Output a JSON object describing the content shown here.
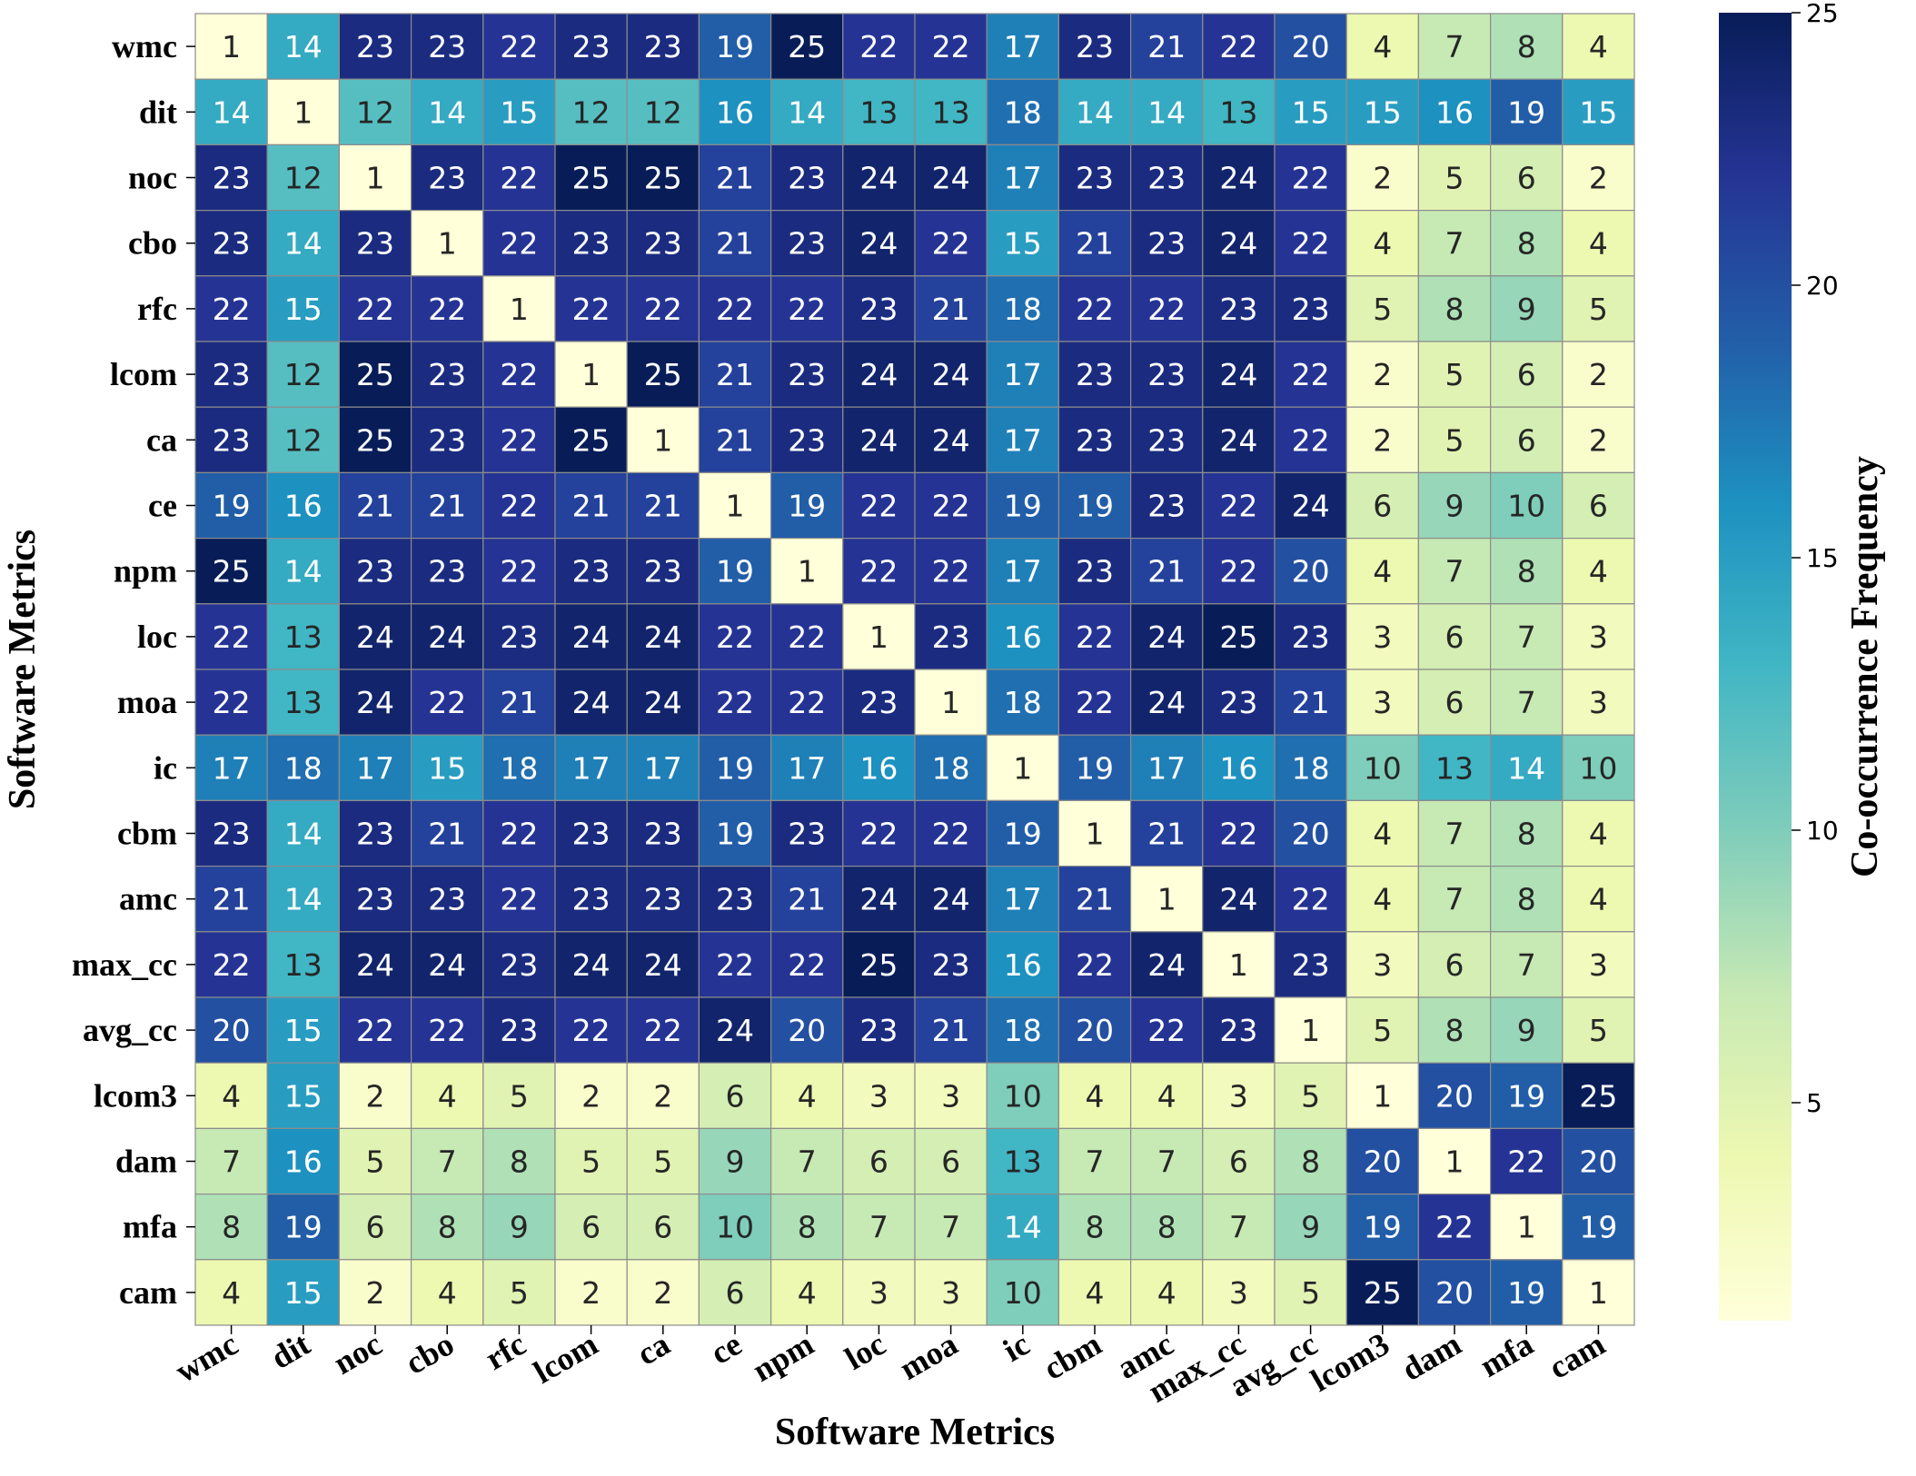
{
  "chart_data": {
    "type": "heatmap",
    "title": "",
    "xlabel": "Software Metrics",
    "ylabel": "Software Metrics",
    "colorbar_label": "Co-occurrence Frequency",
    "colormap": "YlGnBu",
    "vmin": 1,
    "vmax": 25,
    "colorbar_ticks": [
      5,
      10,
      15,
      20,
      25
    ],
    "categories": [
      "wmc",
      "dit",
      "noc",
      "cbo",
      "rfc",
      "lcom",
      "ca",
      "ce",
      "npm",
      "loc",
      "moa",
      "ic",
      "cbm",
      "amc",
      "max_cc",
      "avg_cc",
      "lcom3",
      "dam",
      "mfa",
      "cam"
    ],
    "values": [
      [
        1,
        14,
        23,
        23,
        22,
        23,
        23,
        19,
        25,
        22,
        22,
        17,
        23,
        21,
        22,
        20,
        4,
        7,
        8,
        4
      ],
      [
        14,
        1,
        12,
        14,
        15,
        12,
        12,
        16,
        14,
        13,
        13,
        18,
        14,
        14,
        13,
        15,
        15,
        16,
        19,
        15
      ],
      [
        23,
        12,
        1,
        23,
        22,
        25,
        25,
        21,
        23,
        24,
        24,
        17,
        23,
        23,
        24,
        22,
        2,
        5,
        6,
        2
      ],
      [
        23,
        14,
        23,
        1,
        22,
        23,
        23,
        21,
        23,
        24,
        22,
        15,
        21,
        23,
        24,
        22,
        4,
        7,
        8,
        4
      ],
      [
        22,
        15,
        22,
        22,
        1,
        22,
        22,
        22,
        22,
        23,
        21,
        18,
        22,
        22,
        23,
        23,
        5,
        8,
        9,
        5
      ],
      [
        23,
        12,
        25,
        23,
        22,
        1,
        25,
        21,
        23,
        24,
        24,
        17,
        23,
        23,
        24,
        22,
        2,
        5,
        6,
        2
      ],
      [
        23,
        12,
        25,
        23,
        22,
        25,
        1,
        21,
        23,
        24,
        24,
        17,
        23,
        23,
        24,
        22,
        2,
        5,
        6,
        2
      ],
      [
        19,
        16,
        21,
        21,
        22,
        21,
        21,
        1,
        19,
        22,
        22,
        19,
        19,
        23,
        22,
        24,
        6,
        9,
        10,
        6
      ],
      [
        25,
        14,
        23,
        23,
        22,
        23,
        23,
        19,
        1,
        22,
        22,
        17,
        23,
        21,
        22,
        20,
        4,
        7,
        8,
        4
      ],
      [
        22,
        13,
        24,
        24,
        23,
        24,
        24,
        22,
        22,
        1,
        23,
        16,
        22,
        24,
        25,
        23,
        3,
        6,
        7,
        3
      ],
      [
        22,
        13,
        24,
        22,
        21,
        24,
        24,
        22,
        22,
        23,
        1,
        18,
        22,
        24,
        23,
        21,
        3,
        6,
        7,
        3
      ],
      [
        17,
        18,
        17,
        15,
        18,
        17,
        17,
        19,
        17,
        16,
        18,
        1,
        19,
        17,
        16,
        18,
        10,
        13,
        14,
        10
      ],
      [
        23,
        14,
        23,
        21,
        22,
        23,
        23,
        19,
        23,
        22,
        22,
        19,
        1,
        21,
        22,
        20,
        4,
        7,
        8,
        4
      ],
      [
        21,
        14,
        23,
        23,
        22,
        23,
        23,
        23,
        21,
        24,
        24,
        17,
        21,
        1,
        24,
        22,
        4,
        7,
        8,
        4
      ],
      [
        22,
        13,
        24,
        24,
        23,
        24,
        24,
        22,
        22,
        25,
        23,
        16,
        22,
        24,
        1,
        23,
        3,
        6,
        7,
        3
      ],
      [
        20,
        15,
        22,
        22,
        23,
        22,
        22,
        24,
        20,
        23,
        21,
        18,
        20,
        22,
        23,
        1,
        5,
        8,
        9,
        5
      ],
      [
        4,
        15,
        2,
        4,
        5,
        2,
        2,
        6,
        4,
        3,
        3,
        10,
        4,
        4,
        3,
        5,
        1,
        20,
        19,
        25
      ],
      [
        7,
        16,
        5,
        7,
        8,
        5,
        5,
        9,
        7,
        6,
        6,
        13,
        7,
        7,
        6,
        8,
        20,
        1,
        22,
        20
      ],
      [
        8,
        19,
        6,
        8,
        9,
        6,
        6,
        10,
        8,
        7,
        7,
        14,
        8,
        8,
        7,
        9,
        19,
        22,
        1,
        19
      ],
      [
        4,
        15,
        2,
        4,
        5,
        2,
        2,
        6,
        4,
        3,
        3,
        10,
        4,
        4,
        3,
        5,
        25,
        20,
        19,
        1
      ]
    ]
  }
}
